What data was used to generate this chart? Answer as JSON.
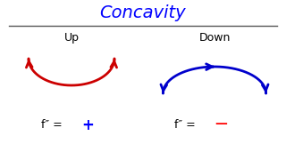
{
  "title": "Concavity",
  "title_color": "blue",
  "title_fontsize": 14,
  "title_style": "italic",
  "label_up": "Up",
  "label_down": "Down",
  "label_fontsize": 9,
  "label_color": "black",
  "curve_up_color": "#cc0000",
  "curve_down_color": "#0000cc",
  "formula_color": "black",
  "plus_color": "blue",
  "minus_color": "red",
  "formula_fontsize": 9,
  "line_color": "#555555",
  "bg_color": "white",
  "xlim": [
    0,
    10
  ],
  "ylim": [
    0,
    6
  ]
}
